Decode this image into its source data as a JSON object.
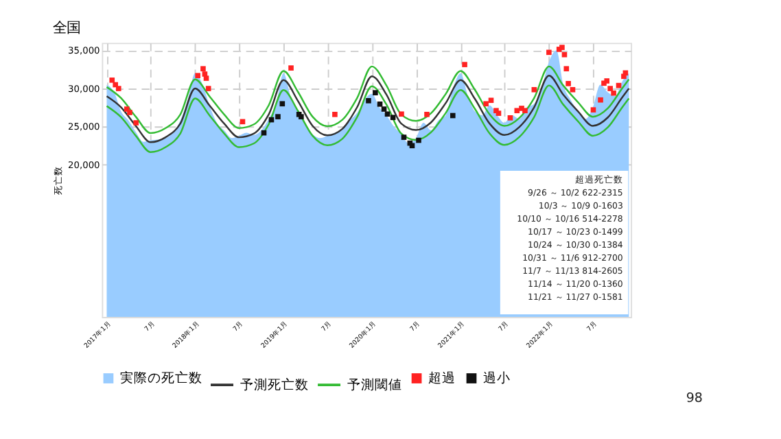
{
  "chart_data": {
    "type": "area",
    "title": "全国",
    "ylabel": "死亡数",
    "xlim": [
      "2016-12-12",
      "2022-12-05"
    ],
    "ylim": [
      0,
      36000
    ],
    "yticks": [
      {
        "value": 20000,
        "label": "20,000"
      },
      {
        "value": 25000,
        "label": "25,000"
      },
      {
        "value": 30000,
        "label": "30,000"
      },
      {
        "value": 35000,
        "label": "35,000"
      }
    ],
    "xticks": [
      {
        "value": "2017-01-01",
        "label": "2017年1月"
      },
      {
        "value": "2017-07-01",
        "label": "7月"
      },
      {
        "value": "2018-01-01",
        "label": "2018年1月"
      },
      {
        "value": "2018-07-01",
        "label": "7月"
      },
      {
        "value": "2019-01-01",
        "label": "2019年1月"
      },
      {
        "value": "2019-07-01",
        "label": "7月"
      },
      {
        "value": "2020-01-01",
        "label": "2020年1月"
      },
      {
        "value": "2020-07-01",
        "label": "7月"
      },
      {
        "value": "2021-01-01",
        "label": "2021年1月"
      },
      {
        "value": "2021-07-01",
        "label": "7月"
      },
      {
        "value": "2022-01-01",
        "label": "2022年1月"
      },
      {
        "value": "2022-07-01",
        "label": "7月"
      }
    ],
    "grid": true,
    "legend": "bottom",
    "series": [
      {
        "name": "実際の死亡数",
        "color": "#99ccff",
        "x": [
          "2017-01-01",
          "2017-02-01",
          "2017-03-01",
          "2017-04-01",
          "2017-05-01",
          "2017-06-01",
          "2017-07-01",
          "2017-08-01",
          "2017-09-01",
          "2017-10-01",
          "2017-11-01",
          "2017-12-01",
          "2018-01-01",
          "2018-02-01",
          "2018-03-01",
          "2018-04-01",
          "2018-05-01",
          "2018-06-01",
          "2018-07-01",
          "2018-08-01",
          "2018-09-01",
          "2018-10-01",
          "2018-11-01",
          "2018-12-01",
          "2019-01-01",
          "2019-02-01",
          "2019-03-01",
          "2019-04-01",
          "2019-05-01",
          "2019-06-01",
          "2019-07-01",
          "2019-08-01",
          "2019-09-01",
          "2019-10-01",
          "2019-11-01",
          "2019-12-01",
          "2020-01-01",
          "2020-02-01",
          "2020-03-01",
          "2020-04-01",
          "2020-05-01",
          "2020-06-01",
          "2020-07-01",
          "2020-08-01",
          "2020-09-01",
          "2020-10-01",
          "2020-11-01",
          "2020-12-01",
          "2021-01-01",
          "2021-02-01",
          "2021-03-01",
          "2021-04-01",
          "2021-05-01",
          "2021-06-01",
          "2021-07-01",
          "2021-08-01",
          "2021-09-01",
          "2021-10-01",
          "2021-11-01",
          "2021-12-01",
          "2022-01-01",
          "2022-02-01",
          "2022-03-01",
          "2022-04-01",
          "2022-05-01",
          "2022-06-01",
          "2022-07-01",
          "2022-08-01",
          "2022-09-01",
          "2022-10-01",
          "2022-11-01",
          "2022-11-27"
        ],
        "values": [
          30500,
          29500,
          27000,
          25800,
          24300,
          23000,
          23200,
          23300,
          23500,
          24200,
          25800,
          28500,
          32000,
          30500,
          27800,
          25500,
          24500,
          23500,
          23800,
          24200,
          23900,
          24500,
          26000,
          28000,
          32000,
          28800,
          27000,
          25300,
          24000,
          23500,
          23800,
          24200,
          24600,
          25800,
          26800,
          28500,
          29300,
          27500,
          26500,
          25000,
          24000,
          22800,
          23500,
          25500,
          24500,
          25800,
          26500,
          30000,
          32000,
          29000,
          27000,
          26500,
          27800,
          26500,
          25500,
          26500,
          26000,
          27500,
          28000,
          30000,
          33500,
          35000,
          30500,
          28500,
          27000,
          26000,
          27500,
          30500,
          29500,
          29000,
          31000,
          32000
        ]
      },
      {
        "name": "予測死亡数",
        "type": "line",
        "color": "#333333",
        "line_style": "solid",
        "x": [
          "2017-01-01",
          "2017-03-01",
          "2017-05-01",
          "2017-07-01",
          "2017-09-01",
          "2017-11-01",
          "2018-01-01",
          "2018-03-01",
          "2018-05-01",
          "2018-07-01",
          "2018-09-01",
          "2018-11-01",
          "2019-01-01",
          "2019-03-01",
          "2019-05-01",
          "2019-07-01",
          "2019-09-01",
          "2019-11-01",
          "2020-01-01",
          "2020-03-01",
          "2020-05-01",
          "2020-07-01",
          "2020-09-01",
          "2020-11-01",
          "2021-01-01",
          "2021-03-01",
          "2021-05-01",
          "2021-07-01",
          "2021-09-01",
          "2021-11-01",
          "2022-01-01",
          "2022-03-01",
          "2022-05-01",
          "2022-07-01",
          "2022-09-01",
          "2022-11-01",
          "2022-11-27"
        ],
        "values": [
          29000,
          27550,
          25100,
          22950,
          23600,
          25400,
          30000,
          27800,
          25400,
          23600,
          24100,
          26600,
          31100,
          28400,
          25100,
          23850,
          24700,
          27550,
          31600,
          29200,
          25400,
          24550,
          25550,
          28100,
          31100,
          28650,
          25400,
          23900,
          24950,
          27550,
          31700,
          29200,
          27000,
          25100,
          26200,
          28900,
          30000
        ]
      },
      {
        "name": "予測閾値",
        "type": "line",
        "color": "#33bb33",
        "line_style": "solid",
        "x": [
          "2017-01-01",
          "2017-03-01",
          "2017-05-01",
          "2017-07-01",
          "2017-09-01",
          "2017-11-01",
          "2018-01-01",
          "2018-03-01",
          "2018-05-01",
          "2018-07-01",
          "2018-09-01",
          "2018-11-01",
          "2019-01-01",
          "2019-03-01",
          "2019-05-01",
          "2019-07-01",
          "2019-09-01",
          "2019-11-01",
          "2020-01-01",
          "2020-03-01",
          "2020-05-01",
          "2020-07-01",
          "2020-09-01",
          "2020-11-01",
          "2021-01-01",
          "2021-03-01",
          "2021-05-01",
          "2021-07-01",
          "2021-09-01",
          "2021-11-01",
          "2022-01-01",
          "2022-03-01",
          "2022-05-01",
          "2022-07-01",
          "2022-09-01",
          "2022-11-01",
          "2022-11-27"
        ],
        "values": [
          30200,
          28750,
          26300,
          24150,
          24800,
          26600,
          31200,
          29000,
          26600,
          24800,
          25300,
          27800,
          32300,
          29600,
          26300,
          25050,
          25900,
          28750,
          32900,
          30400,
          26600,
          25750,
          26750,
          29300,
          32300,
          29850,
          26600,
          25100,
          26150,
          28750,
          32900,
          30400,
          28200,
          26300,
          27400,
          30100,
          31200
        ]
      },
      {
        "type": "line",
        "color": "#33bb33",
        "line_style": "solid",
        "x": [
          "2017-01-01",
          "2017-03-01",
          "2017-05-01",
          "2017-07-01",
          "2017-09-01",
          "2017-11-01",
          "2018-01-01",
          "2018-03-01",
          "2018-05-01",
          "2018-07-01",
          "2018-09-01",
          "2018-11-01",
          "2019-01-01",
          "2019-03-01",
          "2019-05-01",
          "2019-07-01",
          "2019-09-01",
          "2019-11-01",
          "2020-01-01",
          "2020-03-01",
          "2020-05-01",
          "2020-07-01",
          "2020-09-01",
          "2020-11-01",
          "2021-01-01",
          "2021-03-01",
          "2021-05-01",
          "2021-07-01",
          "2021-09-01",
          "2021-11-01",
          "2022-01-01",
          "2022-03-01",
          "2022-05-01",
          "2022-07-01",
          "2022-09-01",
          "2022-11-01",
          "2022-11-27"
        ],
        "values": [
          27700,
          26250,
          23800,
          21650,
          22300,
          24100,
          28700,
          26500,
          24100,
          22300,
          22800,
          25300,
          29800,
          27100,
          23800,
          22550,
          23400,
          26250,
          30300,
          27900,
          24100,
          23250,
          24250,
          26800,
          29800,
          27350,
          24100,
          22600,
          23650,
          26250,
          30400,
          27900,
          25700,
          23800,
          24900,
          27600,
          28700
        ]
      },
      {
        "name": "超過",
        "type": "scatter",
        "marker": "square",
        "color": "#ff2222",
        "x": [
          "2017-01-23",
          "2017-02-06",
          "2017-02-19",
          "2017-03-25",
          "2017-04-06",
          "2017-05-02",
          "2018-01-12",
          "2018-02-03",
          "2018-02-10",
          "2018-02-16",
          "2018-02-25",
          "2018-07-16",
          "2019-02-01",
          "2019-08-01",
          "2020-05-02",
          "2020-08-15",
          "2021-01-18",
          "2021-04-16",
          "2021-05-07",
          "2021-05-28",
          "2021-06-07",
          "2021-07-25",
          "2021-08-22",
          "2021-09-10",
          "2021-09-24",
          "2021-11-01",
          "2022-01-01",
          "2022-02-12",
          "2022-02-24",
          "2022-03-06",
          "2022-03-14",
          "2022-03-22",
          "2022-04-09",
          "2022-07-03",
          "2022-08-02",
          "2022-08-16",
          "2022-08-28",
          "2022-09-11",
          "2022-09-25",
          "2022-10-16",
          "2022-11-06",
          "2022-11-13"
        ],
        "values": [
          31100,
          30500,
          30000,
          27300,
          26850,
          25500,
          31700,
          32600,
          31900,
          31350,
          30000,
          25650,
          32700,
          26600,
          26650,
          26600,
          33150,
          28000,
          28450,
          27100,
          26750,
          26150,
          27100,
          27400,
          27100,
          29850,
          34750,
          35150,
          35400,
          34450,
          32600,
          30650,
          29850,
          27200,
          28500,
          30700,
          31000,
          30000,
          29400,
          30400,
          31600,
          32050
        ]
      },
      {
        "name": "過小",
        "type": "scatter",
        "marker": "square",
        "color": "#111111",
        "x": [
          "2018-10-12",
          "2018-11-12",
          "2018-12-09",
          "2018-12-27",
          "2019-03-06",
          "2019-03-15",
          "2019-12-18",
          "2020-01-15",
          "2020-02-03",
          "2020-02-20",
          "2020-03-05",
          "2020-03-28",
          "2020-05-12",
          "2020-06-06",
          "2020-06-15",
          "2020-07-12",
          "2020-11-30"
        ],
        "values": [
          24180,
          25900,
          26300,
          28000,
          26600,
          26300,
          28400,
          29450,
          27950,
          27300,
          26650,
          26200,
          23600,
          22830,
          22500,
          23200,
          26450
        ]
      }
    ],
    "annotations": [
      "超過死亡数",
      "9/26 ～ 10/2 622-2315",
      "10/3 ～ 10/9 0-1603",
      "10/10 ～ 10/16 514-2278",
      "10/17 ～ 10/23 0-1499",
      "10/24 ～ 10/30 0-1384",
      "10/31 ～ 11/6 912-2700",
      "11/7 ～ 11/13 814-2605",
      "11/14 ～ 11/20 0-1360",
      "11/21 ～ 11/27 0-1581",
      "98"
    ]
  }
}
